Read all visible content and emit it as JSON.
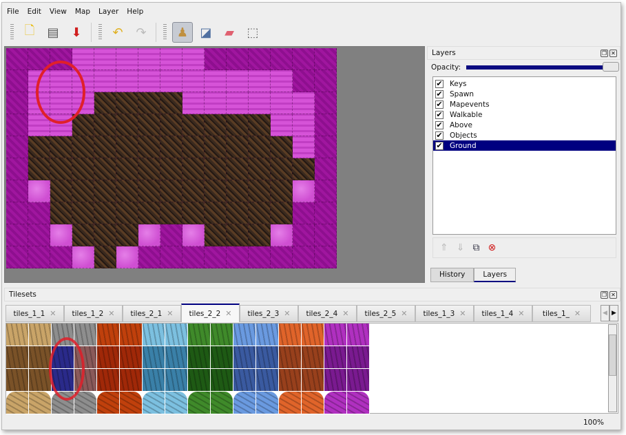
{
  "menu": [
    {
      "label": "File"
    },
    {
      "label": "Edit"
    },
    {
      "label": "View"
    },
    {
      "label": "Map"
    },
    {
      "label": "Layer"
    },
    {
      "label": "Help"
    }
  ],
  "toolbar": {
    "groups": [
      [
        "new-map-icon",
        "open-icon",
        "save-icon"
      ],
      [
        "undo-icon",
        "redo-icon"
      ],
      [
        "stamp-brush-icon",
        "bucket-fill-icon",
        "eraser-icon",
        "rectangle-select-icon"
      ]
    ],
    "active": "stamp-brush-icon"
  },
  "map": {
    "rows": [
      "MMMLLLLLLMMMMMM",
      "MLLLLLLLLLLLLMM",
      "MLLLDDDDLLLLLLM",
      "MLLDDDDDDDDDLLM",
      "MDDDDDDDDDDDDLM",
      "MDDDDDDDDDDDDDM",
      "MPDDDDDDDDDDDPM",
      "MMDDDDDDDDDDDMM",
      "MMPDDDPMPDDDPMM",
      "MMMPDPMMMMMMMMM"
    ]
  },
  "layers_panel": {
    "title": "Layers",
    "opacity_label": "Opacity:",
    "opacity": 100,
    "layers": [
      {
        "name": "Keys",
        "visible": true
      },
      {
        "name": "Spawn",
        "visible": true
      },
      {
        "name": "Mapevents",
        "visible": true
      },
      {
        "name": "Walkable",
        "visible": true
      },
      {
        "name": "Above",
        "visible": true
      },
      {
        "name": "Objects",
        "visible": true
      },
      {
        "name": "Ground",
        "visible": true,
        "selected": true
      }
    ],
    "tabs": [
      {
        "label": "History"
      },
      {
        "label": "Layers",
        "active": true
      }
    ]
  },
  "tilesets_panel": {
    "title": "Tilesets",
    "tabs": [
      {
        "label": "tiles_1_1"
      },
      {
        "label": "tiles_1_2"
      },
      {
        "label": "tiles_2_1"
      },
      {
        "label": "tiles_2_2",
        "active": true
      },
      {
        "label": "tiles_2_3"
      },
      {
        "label": "tiles_2_4"
      },
      {
        "label": "tiles_2_5"
      },
      {
        "label": "tiles_1_3"
      },
      {
        "label": "tiles_1_4"
      },
      {
        "label": "tiles_1_"
      }
    ],
    "tile_colors": [
      "#c9a468",
      "#8e8e8e",
      "#c0400c",
      "#7cc0e0",
      "#3f8a2a",
      "#6a9ae0",
      "#e0642a",
      "#b030c0"
    ],
    "tile_colors_dark": [
      "#7a5228",
      "#8a5a5a",
      "#a02808",
      "#3a80a8",
      "#1e5a14",
      "#3a5aa0",
      "#98401c",
      "#7a1a90"
    ],
    "selected_color": "#2a2a8a"
  },
  "status": {
    "zoom": "100%"
  }
}
